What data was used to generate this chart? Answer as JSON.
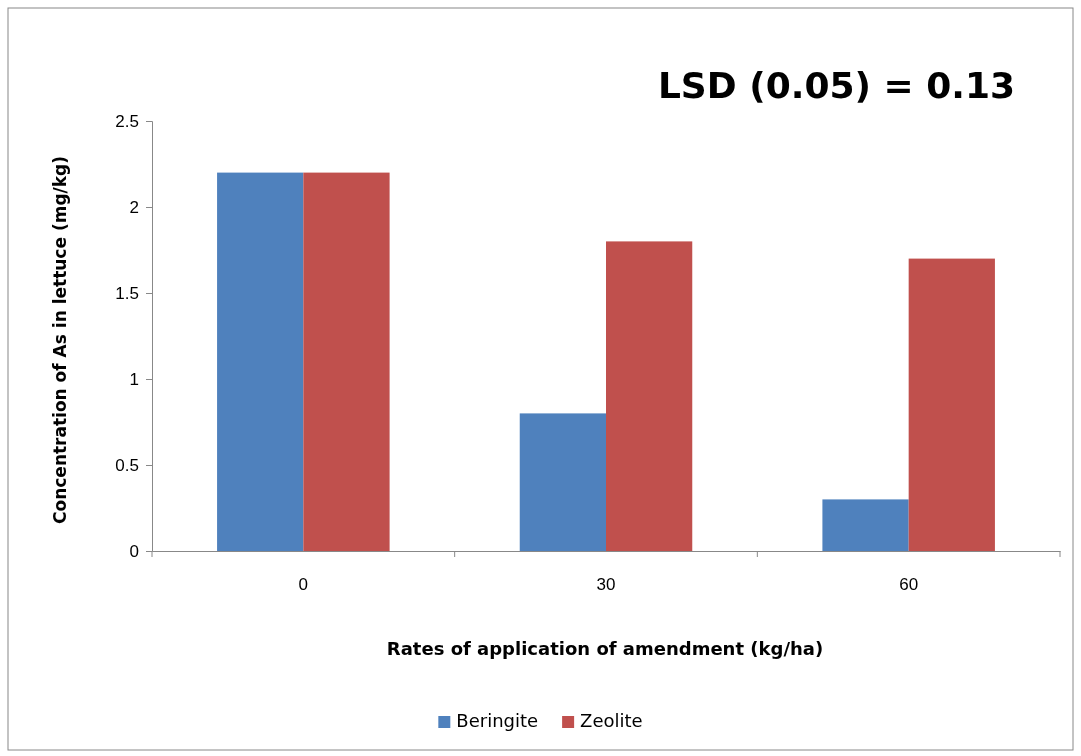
{
  "chart_data": {
    "type": "bar",
    "xlabel": "Rates of application of amendment (kg/ha)",
    "ylabel": "Concentration of As in lettuce (mg/kg)",
    "annotations": [
      "LSD (0.05) = 0.13"
    ],
    "categories": [
      "0",
      "30",
      "60"
    ],
    "series": [
      {
        "name": "Beringite",
        "color": "#4f81bd",
        "values": [
          2.2,
          0.8,
          0.3
        ]
      },
      {
        "name": "Zeolite",
        "color": "#c0504d",
        "values": [
          2.2,
          1.8,
          1.7
        ]
      }
    ],
    "ylim": [
      0,
      2.5
    ],
    "yticks": [
      0,
      {
        "value": 0.5,
        "label": "0.5"
      },
      1,
      {
        "value": 1.5,
        "label": "1.5"
      },
      2,
      {
        "value": 2.5,
        "label": "2.5"
      }
    ],
    "grid": false,
    "legend": "bottom"
  }
}
